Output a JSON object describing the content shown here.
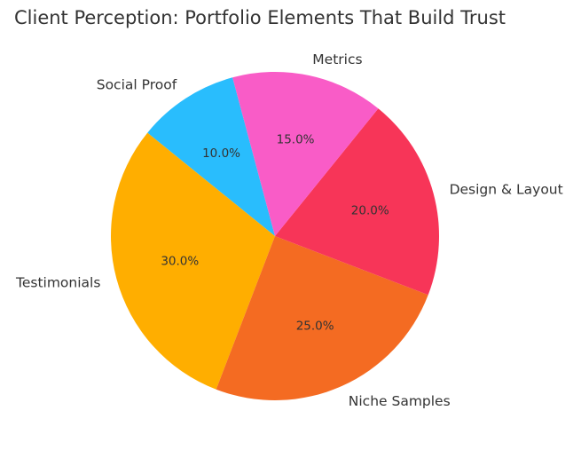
{
  "chart_data": {
    "type": "pie",
    "title": "Client Perception: Portfolio Elements That Build Trust",
    "start_angle_deg": 105,
    "direction": "counterclockwise",
    "slices": [
      {
        "label": "Social Proof",
        "value": 10.0,
        "pct_label": "10.0%",
        "color": "#29BDFD"
      },
      {
        "label": "Testimonials",
        "value": 30.0,
        "pct_label": "30.0%",
        "color": "#FFAE00"
      },
      {
        "label": "Niche Samples",
        "value": 25.0,
        "pct_label": "25.0%",
        "color": "#F46B22"
      },
      {
        "label": "Design & Layout",
        "value": 20.0,
        "pct_label": "20.0%",
        "color": "#F73558"
      },
      {
        "label": "Metrics",
        "value": 15.0,
        "pct_label": "15.0%",
        "color": "#F95CC7"
      }
    ]
  }
}
